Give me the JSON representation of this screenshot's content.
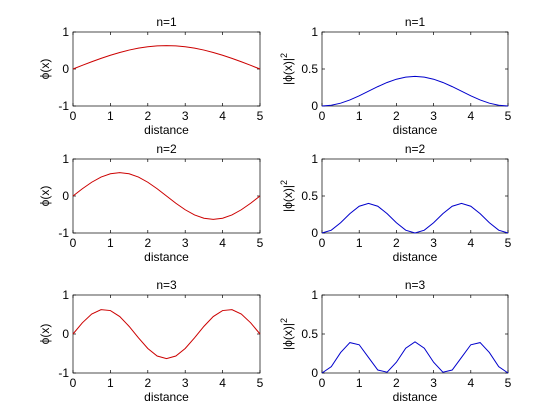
{
  "chart_data": [
    {
      "type": "line",
      "title": "n=1",
      "xlabel": "distance",
      "ylabel": "ϕ(x)",
      "xlim": [
        0,
        5
      ],
      "ylim": [
        -1,
        1
      ],
      "xticks": [
        "0",
        "1",
        "2",
        "3",
        "4",
        "5"
      ],
      "yticks": [
        "-1",
        "0",
        "1"
      ],
      "color": "#cc0000",
      "series": [
        {
          "x": [
            0,
            0.25,
            0.5,
            0.75,
            1,
            1.25,
            1.5,
            1.75,
            2,
            2.25,
            2.5,
            2.75,
            3,
            3.25,
            3.5,
            3.75,
            4,
            4.25,
            4.5,
            4.75,
            5
          ],
          "values": [
            0,
            0.099,
            0.196,
            0.287,
            0.372,
            0.447,
            0.512,
            0.564,
            0.601,
            0.625,
            0.632,
            0.625,
            0.601,
            0.564,
            0.512,
            0.447,
            0.372,
            0.287,
            0.196,
            0.099,
            0
          ]
        }
      ]
    },
    {
      "type": "line",
      "title": "n=1",
      "xlabel": "distance",
      "ylabel": "|ϕ(x)|",
      "ylabel_sup": "2",
      "xlim": [
        0,
        5
      ],
      "ylim": [
        0,
        1
      ],
      "xticks": [
        "0",
        "1",
        "2",
        "3",
        "4",
        "5"
      ],
      "yticks": [
        "0",
        "0.5",
        "1"
      ],
      "color": "#0000cc",
      "series": [
        {
          "x": [
            0,
            0.25,
            0.5,
            0.75,
            1,
            1.25,
            1.5,
            1.75,
            2,
            2.25,
            2.5,
            2.75,
            3,
            3.25,
            3.5,
            3.75,
            4,
            4.25,
            4.5,
            4.75,
            5
          ],
          "values": [
            0,
            0.01,
            0.038,
            0.082,
            0.138,
            0.2,
            0.262,
            0.318,
            0.362,
            0.39,
            0.4,
            0.39,
            0.362,
            0.318,
            0.262,
            0.2,
            0.138,
            0.082,
            0.038,
            0.01,
            0
          ]
        }
      ]
    },
    {
      "type": "line",
      "title": "n=2",
      "xlabel": "distance",
      "ylabel": "ϕ(x)",
      "xlim": [
        0,
        5
      ],
      "ylim": [
        -1,
        1
      ],
      "xticks": [
        "0",
        "1",
        "2",
        "3",
        "4",
        "5"
      ],
      "yticks": [
        "-1",
        "0",
        "1"
      ],
      "color": "#cc0000",
      "series": [
        {
          "x": [
            0,
            0.25,
            0.5,
            0.75,
            1,
            1.25,
            1.5,
            1.75,
            2,
            2.25,
            2.5,
            2.75,
            3,
            3.25,
            3.5,
            3.75,
            4,
            4.25,
            4.5,
            4.75,
            5
          ],
          "values": [
            0,
            0.196,
            0.372,
            0.512,
            0.601,
            0.632,
            0.601,
            0.512,
            0.372,
            0.196,
            0,
            -0.196,
            -0.372,
            -0.512,
            -0.601,
            -0.632,
            -0.601,
            -0.512,
            -0.372,
            -0.196,
            0
          ]
        }
      ]
    },
    {
      "type": "line",
      "title": "n=2",
      "xlabel": "distance",
      "ylabel": "|ϕ(x)|",
      "ylabel_sup": "2",
      "xlim": [
        0,
        5
      ],
      "ylim": [
        0,
        1
      ],
      "xticks": [
        "0",
        "1",
        "2",
        "3",
        "4",
        "5"
      ],
      "yticks": [
        "0",
        "0.5",
        "1"
      ],
      "color": "#0000cc",
      "series": [
        {
          "x": [
            0,
            0.25,
            0.5,
            0.75,
            1,
            1.25,
            1.5,
            1.75,
            2,
            2.25,
            2.5,
            2.75,
            3,
            3.25,
            3.5,
            3.75,
            4,
            4.25,
            4.5,
            4.75,
            5
          ],
          "values": [
            0,
            0.038,
            0.138,
            0.262,
            0.362,
            0.4,
            0.362,
            0.262,
            0.138,
            0.038,
            0,
            0.038,
            0.138,
            0.262,
            0.362,
            0.4,
            0.362,
            0.262,
            0.138,
            0.038,
            0
          ]
        }
      ]
    },
    {
      "type": "line",
      "title": "n=3",
      "xlabel": "distance",
      "ylabel": "ϕ(x)",
      "xlim": [
        0,
        5
      ],
      "ylim": [
        -1,
        1
      ],
      "xticks": [
        "0",
        "1",
        "2",
        "3",
        "4",
        "5"
      ],
      "yticks": [
        "-1",
        "0",
        "1"
      ],
      "color": "#cc0000",
      "series": [
        {
          "x": [
            0,
            0.25,
            0.5,
            0.75,
            1,
            1.25,
            1.5,
            1.75,
            2,
            2.25,
            2.5,
            2.75,
            3,
            3.25,
            3.5,
            3.75,
            4,
            4.25,
            4.5,
            4.75,
            5
          ],
          "values": [
            0,
            0.287,
            0.512,
            0.625,
            0.601,
            0.447,
            0.196,
            -0.099,
            -0.372,
            -0.564,
            -0.632,
            -0.564,
            -0.372,
            -0.099,
            0.196,
            0.447,
            0.601,
            0.625,
            0.512,
            0.287,
            0
          ]
        }
      ]
    },
    {
      "type": "line",
      "title": "n=3",
      "xlabel": "distance",
      "ylabel": "|ϕ(x)|",
      "ylabel_sup": "2",
      "xlim": [
        0,
        5
      ],
      "ylim": [
        0,
        1
      ],
      "xticks": [
        "0",
        "1",
        "2",
        "3",
        "4",
        "5"
      ],
      "yticks": [
        "0",
        "0.5",
        "1"
      ],
      "color": "#0000cc",
      "series": [
        {
          "x": [
            0,
            0.25,
            0.5,
            0.75,
            1,
            1.25,
            1.5,
            1.75,
            2,
            2.25,
            2.5,
            2.75,
            3,
            3.25,
            3.5,
            3.75,
            4,
            4.25,
            4.5,
            4.75,
            5
          ],
          "values": [
            0,
            0.082,
            0.262,
            0.39,
            0.362,
            0.2,
            0.038,
            0.01,
            0.138,
            0.318,
            0.4,
            0.318,
            0.138,
            0.01,
            0.038,
            0.2,
            0.362,
            0.39,
            0.262,
            0.082,
            0
          ]
        }
      ]
    }
  ]
}
